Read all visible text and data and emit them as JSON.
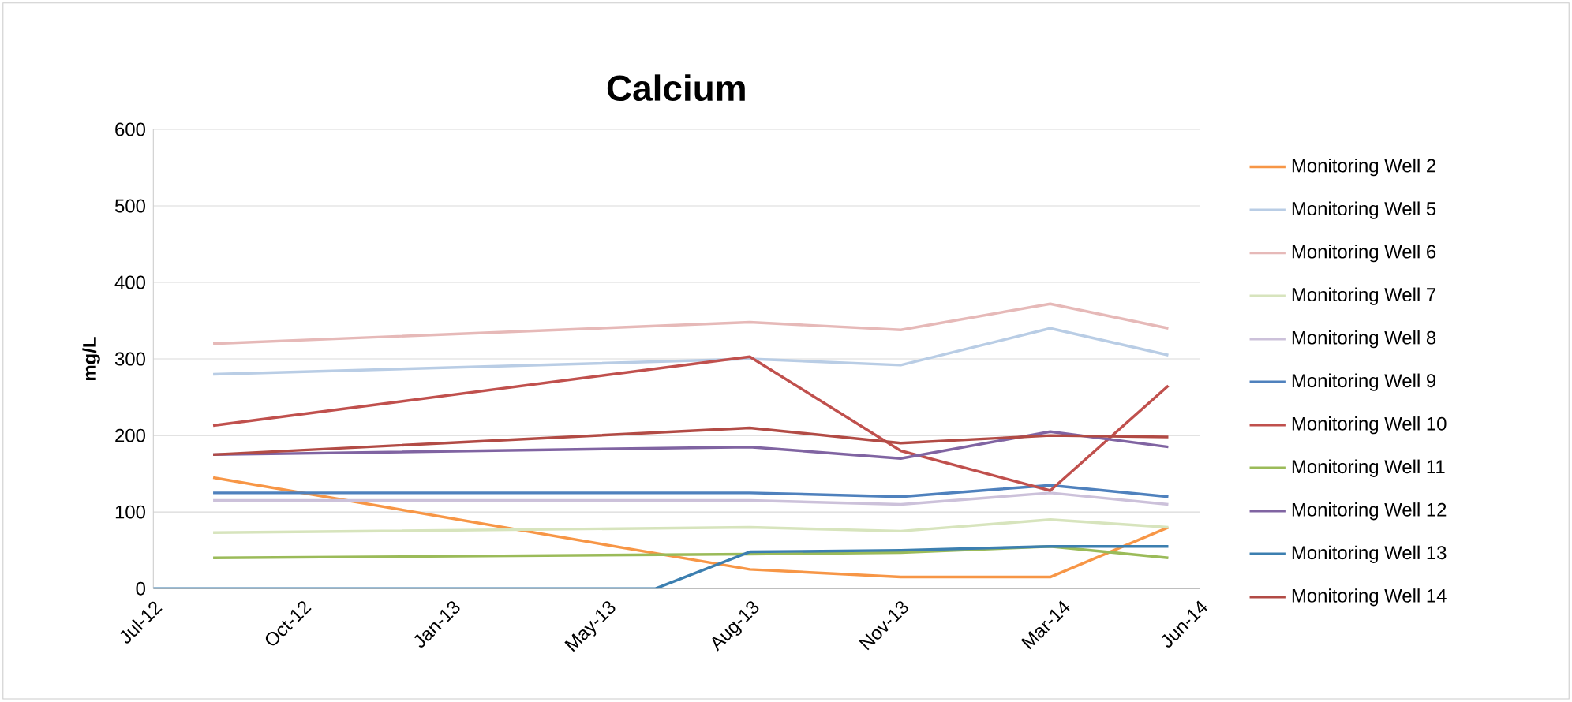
{
  "chart_data": {
    "type": "line",
    "title": "Calcium",
    "ylabel": "mg/L",
    "xlim": [
      "2012-07-01",
      "2014-06-01"
    ],
    "xticks": [
      {
        "value": "2012-07-01",
        "label": "Jul-12"
      },
      {
        "value": "2012-10-09",
        "label": "Oct-12"
      },
      {
        "value": "2013-01-17",
        "label": "Jan-13"
      },
      {
        "value": "2013-05-01",
        "label": "May-13"
      },
      {
        "value": "2013-08-05",
        "label": "Aug-13"
      },
      {
        "value": "2013-11-13",
        "label": "Nov-13"
      },
      {
        "value": "2014-03-01",
        "label": "Mar-14"
      },
      {
        "value": "2014-06-01",
        "label": "Jun-14"
      }
    ],
    "ylim": [
      0,
      600
    ],
    "yticks": [
      0,
      100,
      200,
      300,
      400,
      500,
      600
    ],
    "grid": "y",
    "legend": "right",
    "marker": "none",
    "line_style": "solid",
    "x": [
      "2012-08-10",
      "2013-08-04",
      "2013-11-13",
      "2014-02-21",
      "2014-05-11"
    ],
    "series": [
      {
        "name": "Monitoring Well 2",
        "color": "#f79646",
        "values": [
          145,
          25,
          15,
          15,
          80
        ]
      },
      {
        "name": "Monitoring Well 5",
        "color": "#b9cde5",
        "values": [
          280,
          300,
          292,
          340,
          305
        ]
      },
      {
        "name": "Monitoring Well 6",
        "color": "#e6b9b8",
        "values": [
          320,
          348,
          338,
          372,
          340
        ]
      },
      {
        "name": "Monitoring Well 7",
        "color": "#d7e4bd",
        "values": [
          73,
          80,
          75,
          90,
          80
        ]
      },
      {
        "name": "Monitoring Well 8",
        "color": "#ccc1da",
        "values": [
          115,
          115,
          110,
          125,
          110
        ]
      },
      {
        "name": "Monitoring Well 9",
        "color": "#4f81bd",
        "values": [
          125,
          125,
          120,
          135,
          120
        ]
      },
      {
        "name": "Monitoring Well 10",
        "color": "#c0504d",
        "values": [
          213,
          303,
          180,
          128,
          265
        ]
      },
      {
        "name": "Monitoring Well 11",
        "color": "#9bbb59",
        "values": [
          40,
          45,
          47,
          55,
          40
        ]
      },
      {
        "name": "Monitoring Well 12",
        "color": "#8064a2",
        "values": [
          175,
          185,
          170,
          205,
          185
        ]
      },
      {
        "name": "Monitoring Well 13",
        "color": "#3c7fb0",
        "x": [
          "2012-07-01",
          "2013-06-02",
          "2013-08-04",
          "2013-11-13",
          "2014-02-21",
          "2014-05-11"
        ],
        "values": [
          0,
          0,
          48,
          50,
          55,
          55
        ]
      },
      {
        "name": "Monitoring Well 14",
        "color": "#b24b45",
        "values": [
          175,
          210,
          190,
          200,
          198
        ]
      }
    ]
  }
}
